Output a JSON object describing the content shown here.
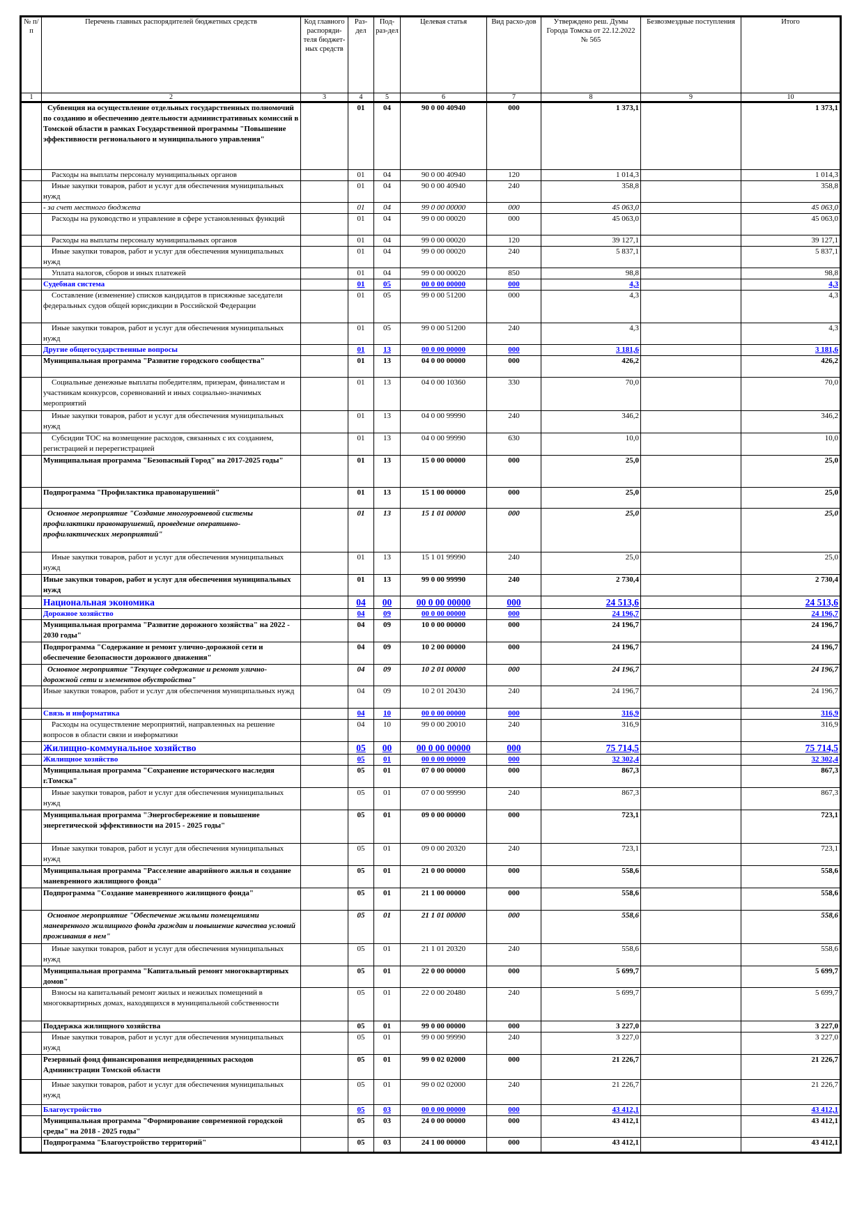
{
  "header": {
    "columns": [
      "№ п/п",
      "Перечень главных распорядителей бюджетных средств",
      "Код главного распоряди-теля бюджет-ных средств",
      "Раз-дел",
      "Под-раз-дел",
      "Целевая статья",
      "Вид расхо-дов",
      "Утверждено реш. Думы Города Томска от 22.12.2022 № 565",
      "Безвозмездные поступления",
      "Итого"
    ],
    "numbers": [
      "1",
      "2",
      "3",
      "4",
      "5",
      "6",
      "7",
      "8",
      "9",
      "10"
    ]
  },
  "rows": [
    {
      "kind": "program",
      "desc": "Субвенция на осуществление отдельных государственных полномочий по созданию и обеспечению деятельности административных комиссий в Томской области в рамках Государственной программы \"Повышение эффективности регионального и муниципального управления\"",
      "rz": "01",
      "pr": "04",
      "cs": "90 0 00 40940",
      "vr": "000",
      "approved": "1 373,1",
      "total": "1 373,1"
    },
    {
      "kind": "item",
      "desc": "Расходы на выплаты персоналу муниципальных органов",
      "rz": "01",
      "pr": "04",
      "cs": "90 0 00 40940",
      "vr": "120",
      "approved": "1 014,3",
      "total": "1 014,3"
    },
    {
      "kind": "item",
      "desc": "Иные закупки товаров, работ и услуг для обеспечения муниципальных нужд",
      "rz": "01",
      "pr": "04",
      "cs": "90 0 00 40940",
      "vr": "240",
      "approved": "358,8",
      "total": "358,8"
    },
    {
      "kind": "note",
      "desc": "- за счет местного бюджета",
      "rz": "01",
      "pr": "04",
      "cs": "99 0 00 00000",
      "vr": "000",
      "approved": "45 063,0",
      "total": "45 063,0"
    },
    {
      "kind": "item",
      "desc": "Расходы на руководство и управление в сфере установленных функций",
      "rz": "01",
      "pr": "04",
      "cs": "99 0 00 00020",
      "vr": "000",
      "approved": "45 063,0",
      "total": "45 063,0"
    },
    {
      "kind": "item",
      "desc": "Расходы на выплаты персоналу муниципальных органов",
      "rz": "01",
      "pr": "04",
      "cs": "99 0 00 00020",
      "vr": "120",
      "approved": "39 127,1",
      "total": "39 127,1"
    },
    {
      "kind": "item",
      "desc": "Иные закупки товаров, работ и услуг для обеспечения муниципальных нужд",
      "rz": "01",
      "pr": "04",
      "cs": "99 0 00 00020",
      "vr": "240",
      "approved": "5 837,1",
      "total": "5 837,1"
    },
    {
      "kind": "item",
      "desc": "Уплата налогов, сборов и иных платежей",
      "rz": "01",
      "pr": "04",
      "cs": "99 0 00 00020",
      "vr": "850",
      "approved": "98,8",
      "total": "98,8"
    },
    {
      "kind": "subsection",
      "desc": "Судебная система",
      "rz": "01",
      "pr": "05",
      "cs": "00 0 00 00000",
      "vr": "000",
      "approved": "4,3",
      "total": "4,3"
    },
    {
      "kind": "item",
      "desc": "Составление (изменение) списков кандидатов в присяжные заседатели федеральных судов общей юрисдикции в Российской Федерации",
      "rz": "01",
      "pr": "05",
      "cs": "99 0 00 51200",
      "vr": "000",
      "approved": "4,3",
      "total": "4,3"
    },
    {
      "kind": "item",
      "desc": "Иные закупки товаров, работ и услуг для обеспечения муниципальных нужд",
      "rz": "01",
      "pr": "05",
      "cs": "99 0 00 51200",
      "vr": "240",
      "approved": "4,3",
      "total": "4,3"
    },
    {
      "kind": "subsection",
      "desc": "Другие общегосударственные вопросы",
      "rz": "01",
      "pr": "13",
      "cs": "00 0 00 00000",
      "vr": "000",
      "approved": "3 181,6",
      "total": "3 181,6"
    },
    {
      "kind": "item-bold",
      "desc": "Муниципальная программа \"Развитие городского сообщества\"",
      "rz": "01",
      "pr": "13",
      "cs": "04 0 00 00000",
      "vr": "000",
      "approved": "426,2",
      "total": "426,2"
    },
    {
      "kind": "item",
      "desc": "Социальные денежные выплаты победителям, призерам, финалистам и участникам конкурсов, соревнований и иных социально-значимых мероприятий",
      "rz": "01",
      "pr": "13",
      "cs": "04 0 00 10360",
      "vr": "330",
      "approved": "70,0",
      "total": "70,0"
    },
    {
      "kind": "item",
      "desc": "Иные закупки товаров, работ и услуг для обеспечения муниципальных нужд",
      "rz": "01",
      "pr": "13",
      "cs": "04 0 00 99990",
      "vr": "240",
      "approved": "346,2",
      "total": "346,2"
    },
    {
      "kind": "item",
      "desc": "Субсидии ТОС на возмещение расходов, связанных с их созданием, регистрацией и перерегистрацией",
      "rz": "01",
      "pr": "13",
      "cs": "04 0 00 99990",
      "vr": "630",
      "approved": "10,0",
      "total": "10,0"
    },
    {
      "kind": "item-bold",
      "desc": "Муниципальная программа \"Безопасный Город\" на 2017-2025 годы\"",
      "rz": "01",
      "pr": "13",
      "cs": "15 0 00 00000",
      "vr": "000",
      "approved": "25,0",
      "total": "25,0"
    },
    {
      "kind": "item-bold",
      "desc": "Подпрограмма \"Профилактика правонарушений\"",
      "rz": "01",
      "pr": "13",
      "cs": "15 1 00 00000",
      "vr": "000",
      "approved": "25,0",
      "total": "25,0"
    },
    {
      "kind": "event",
      "desc": "Основное мероприятие \"Создание многоуровневой системы профилактики правонарушений, проведение оперативно-профилактических мероприятий\"",
      "rz": "01",
      "pr": "13",
      "cs": "15 1 01 00000",
      "vr": "000",
      "approved": "25,0",
      "total": "25,0"
    },
    {
      "kind": "item",
      "desc": "Иные закупки товаров, работ и услуг для обеспечения муниципальных нужд",
      "rz": "01",
      "pr": "13",
      "cs": "15 1 01 99990",
      "vr": "240",
      "approved": "25,0",
      "total": "25,0"
    },
    {
      "kind": "item-bold",
      "desc": "Иные закупки товаров, работ и услуг для обеспечения муниципальных нужд",
      "rz": "01",
      "pr": "13",
      "cs": "99 0 00 99990",
      "vr": "240",
      "approved": "2 730,4",
      "total": "2 730,4"
    },
    {
      "kind": "section",
      "desc": "Национальная экономика",
      "rz": "04",
      "pr": "00",
      "cs": "00 0 00 00000",
      "vr": "000",
      "approved": "24 513,6",
      "total": "24 513,6"
    },
    {
      "kind": "subsection",
      "desc": "Дорожное хозяйство",
      "rz": "04",
      "pr": "09",
      "cs": "00 0 00 00000",
      "vr": "000",
      "approved": "24 196,7",
      "total": "24 196,7"
    },
    {
      "kind": "item-bold",
      "desc": "Муниципальная программа \"Развитие дорожного хозяйства\" на 2022 - 2030 годы\"",
      "rz": "04",
      "pr": "09",
      "cs": "10 0 00 00000",
      "vr": "000",
      "approved": "24 196,7",
      "total": "24 196,7"
    },
    {
      "kind": "item-bold",
      "desc": "Подпрограмма \"Содержание и ремонт улично-дорожной сети и обеспечение безопасности дорожного движения\"",
      "rz": "04",
      "pr": "09",
      "cs": "10 2 00 00000",
      "vr": "000",
      "approved": "24 196,7",
      "total": "24 196,7"
    },
    {
      "kind": "event",
      "desc": "Основное мероприятие \"Текущее содержание и ремонт улично-дорожной сети и элементов обустройства\"",
      "rz": "04",
      "pr": "09",
      "cs": "10 2 01 00000",
      "vr": "000",
      "approved": "24 196,7",
      "total": "24 196,7"
    },
    {
      "kind": "item-plain",
      "desc": "Иные закупки товаров, работ и услуг для обеспечения муниципальных нужд",
      "rz": "04",
      "pr": "09",
      "cs": "10 2 01 20430",
      "vr": "240",
      "approved": "24 196,7",
      "total": "24 196,7"
    },
    {
      "kind": "subsection",
      "desc": "Связь и информатика",
      "rz": "04",
      "pr": "10",
      "cs": "00 0 00 00000",
      "vr": "000",
      "approved": "316,9",
      "total": "316,9"
    },
    {
      "kind": "item",
      "desc": "Расходы на осуществление мероприятий, направленных на решение вопросов в области связи и информатики",
      "rz": "04",
      "pr": "10",
      "cs": "99 0 00 20010",
      "vr": "240",
      "approved": "316,9",
      "total": "316,9"
    },
    {
      "kind": "section",
      "desc": "Жилищно-коммунальное хозяйство",
      "rz": "05",
      "pr": "00",
      "cs": "00 0 00 00000",
      "vr": "000",
      "approved": "75 714,5",
      "total": "75 714,5"
    },
    {
      "kind": "subsection",
      "desc": "Жилищное хозяйство",
      "rz": "05",
      "pr": "01",
      "cs": "00 0 00 00000",
      "vr": "000",
      "approved": "32 302,4",
      "total": "32 302,4"
    },
    {
      "kind": "item-bold",
      "desc": "Муниципальная программа \"Сохранение исторического наследия г.Томска\"",
      "rz": "05",
      "pr": "01",
      "cs": "07 0 00 00000",
      "vr": "000",
      "approved": "867,3",
      "total": "867,3"
    },
    {
      "kind": "item",
      "desc": "Иные закупки товаров, работ и услуг для обеспечения муниципальных нужд",
      "rz": "05",
      "pr": "01",
      "cs": "07 0 00 99990",
      "vr": "240",
      "approved": "867,3",
      "total": "867,3"
    },
    {
      "kind": "item-bold",
      "desc": "Муниципальная программа \"Энергосбережение и повышение энергетической эффективности на 2015 - 2025 годы\"",
      "rz": "05",
      "pr": "01",
      "cs": "09 0 00 00000",
      "vr": "000",
      "approved": "723,1",
      "total": "723,1"
    },
    {
      "kind": "item",
      "desc": "Иные закупки товаров, работ и услуг для обеспечения муниципальных нужд",
      "rz": "05",
      "pr": "01",
      "cs": "09 0 00 20320",
      "vr": "240",
      "approved": "723,1",
      "total": "723,1"
    },
    {
      "kind": "item-bold",
      "desc": "Муниципальная программа \"Расселение аварийного жилья и создание маневренного жилищного фонда\"",
      "rz": "05",
      "pr": "01",
      "cs": "21 0 00 00000",
      "vr": "000",
      "approved": "558,6",
      "total": "558,6"
    },
    {
      "kind": "item-bold",
      "desc": "Подпрограмма \"Создание маневренного жилищного фонда\"",
      "rz": "05",
      "pr": "01",
      "cs": "21 1 00 00000",
      "vr": "000",
      "approved": "558,6",
      "total": "558,6"
    },
    {
      "kind": "event",
      "desc": "Основное мероприятие \"Обеспечение жилыми помещениями маневренного жилищного фонда граждан и повышение качества условий проживания в нем\"",
      "rz": "05",
      "pr": "01",
      "cs": "21 1 01 00000",
      "vr": "000",
      "approved": "558,6",
      "total": "558,6"
    },
    {
      "kind": "item",
      "desc": "Иные закупки товаров, работ и услуг для обеспечения муниципальных нужд",
      "rz": "05",
      "pr": "01",
      "cs": "21 1 01 20320",
      "vr": "240",
      "approved": "558,6",
      "total": "558,6"
    },
    {
      "kind": "item-bold",
      "desc": "Муниципальная программа \"Капитальный ремонт многоквартирных домов\"",
      "rz": "05",
      "pr": "01",
      "cs": "22 0 00 00000",
      "vr": "000",
      "approved": "5 699,7",
      "total": "5 699,7"
    },
    {
      "kind": "item",
      "desc": "Взносы на капитальный ремонт жилых и нежилых помещений в многоквартирных домах, находящихся в муниципальной собственности",
      "rz": "05",
      "pr": "01",
      "cs": "22 0 00 20480",
      "vr": "240",
      "approved": "5 699,7",
      "total": "5 699,7"
    },
    {
      "kind": "item-bold",
      "desc": "Поддержка жилищного хозяйства",
      "rz": "05",
      "pr": "01",
      "cs": "99 0 00 00000",
      "vr": "000",
      "approved": "3 227,0",
      "total": "3 227,0"
    },
    {
      "kind": "item",
      "desc": "Иные закупки товаров, работ и услуг для обеспечения муниципальных нужд",
      "rz": "05",
      "pr": "01",
      "cs": "99 0 00 99990",
      "vr": "240",
      "approved": "3 227,0",
      "total": "3 227,0"
    },
    {
      "kind": "item-bold",
      "desc": "Резервный фонд финансирования непредвиденных расходов Администрации Томской области",
      "rz": "05",
      "pr": "01",
      "cs": "99 0 02 02000",
      "vr": "000",
      "approved": "21 226,7",
      "total": "21 226,7"
    },
    {
      "kind": "item",
      "desc": "Иные закупки товаров, работ и услуг для обеспечения муниципальных нужд",
      "rz": "05",
      "pr": "01",
      "cs": "99 0 02 02000",
      "vr": "240",
      "approved": "21 226,7",
      "total": "21 226,7"
    },
    {
      "kind": "subsection",
      "desc": "Благоустройство",
      "rz": "05",
      "pr": "03",
      "cs": "00 0 00 00000",
      "vr": "000",
      "approved": "43 412,1",
      "total": "43 412,1"
    },
    {
      "kind": "item-bold",
      "desc": "Муниципальная программа \"Формирование современной городской среды\" на 2018 - 2025 годы\"",
      "rz": "05",
      "pr": "03",
      "cs": "24 0 00 00000",
      "vr": "000",
      "approved": "43 412,1",
      "total": "43 412,1"
    },
    {
      "kind": "item-bold",
      "desc": "Подпрограмма \"Благоустройство территорий\"",
      "rz": "05",
      "pr": "03",
      "cs": "24 1 00 00000",
      "vr": "000",
      "approved": "43 412,1",
      "total": "43 412,1"
    }
  ]
}
